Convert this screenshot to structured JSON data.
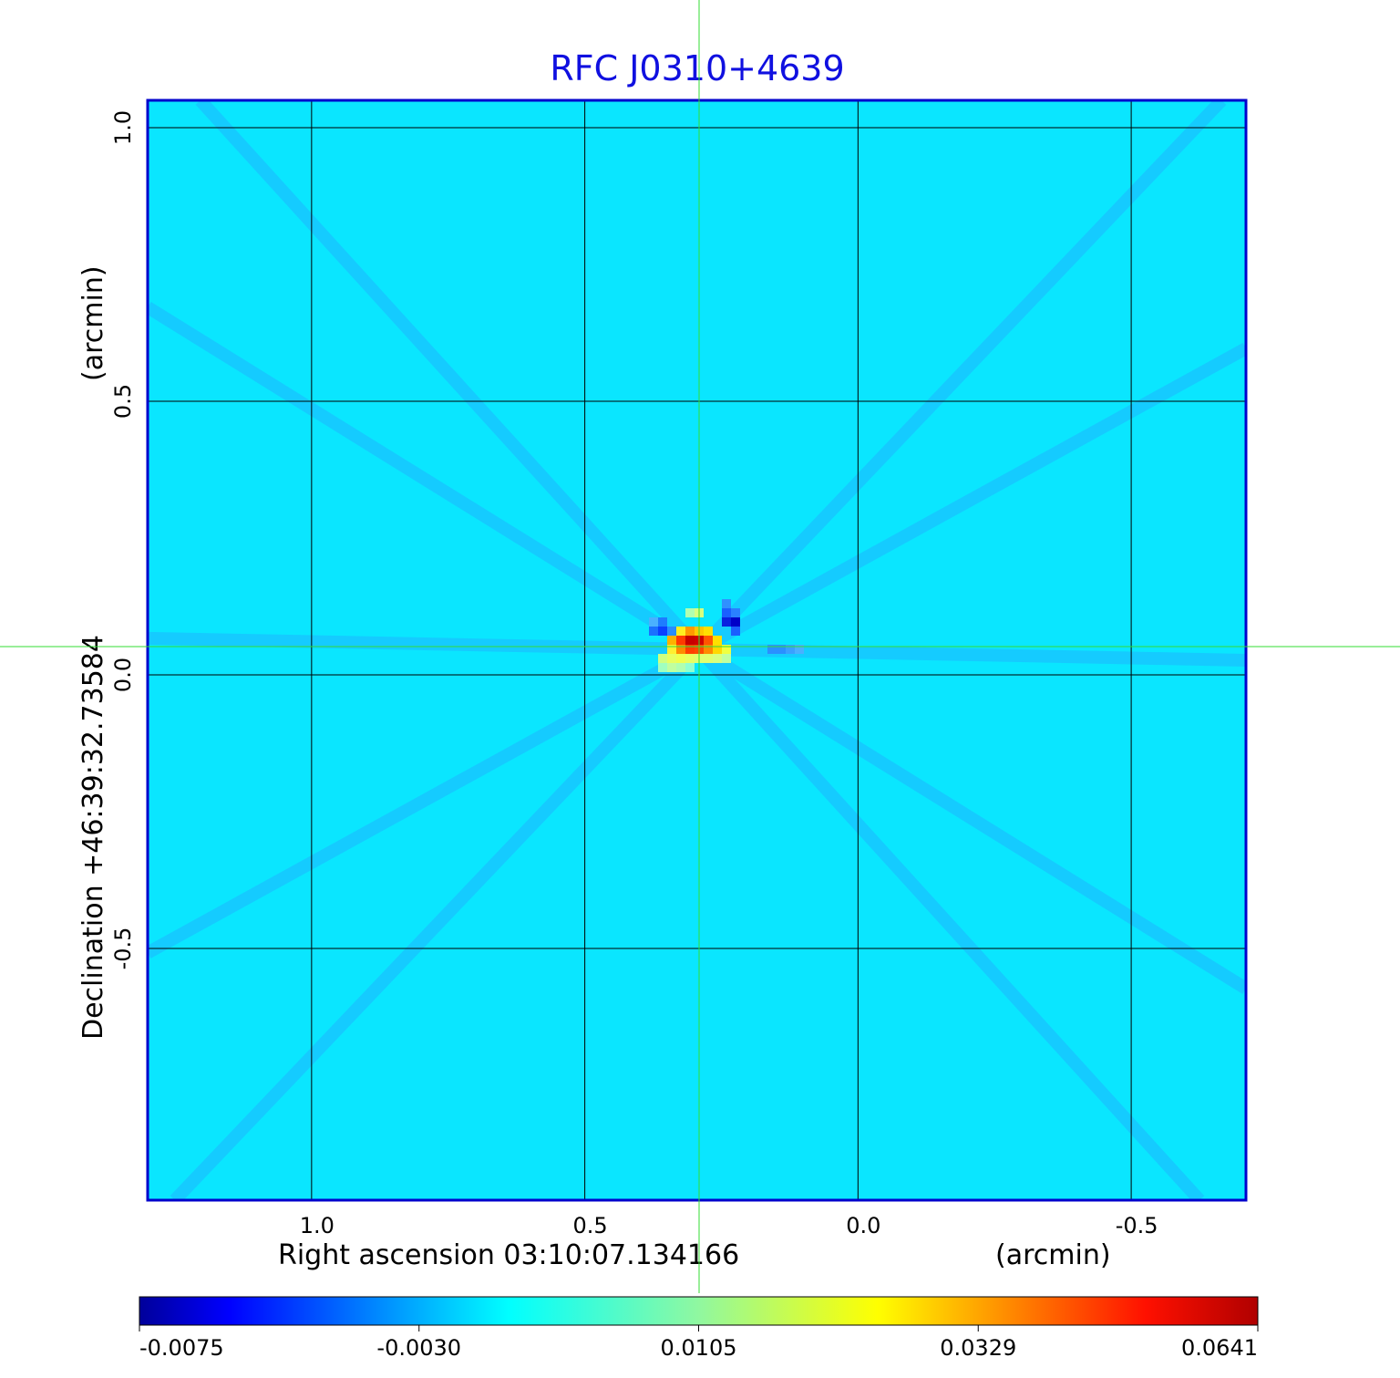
{
  "chart_data": {
    "type": "heatmap",
    "title": "RFC J0310+4639",
    "xlabel": "Right ascension  03:10:07.134166",
    "xlabel_unit": "(arcmin)",
    "ylabel": "Declination  +46:39:32.73584",
    "ylabel_unit": "(arcmin)",
    "x_ticks": [
      "1.0",
      "0.5",
      "0.0",
      "-0.5"
    ],
    "x_tick_values": [
      1.0,
      0.5,
      0.0,
      -0.5
    ],
    "y_ticks": [
      "1.0",
      "0.5",
      "0.0",
      "-0.5"
    ],
    "y_tick_values": [
      1.0,
      0.5,
      0.0,
      -0.5
    ],
    "xlim": [
      1.3,
      -0.71
    ],
    "ylim": [
      -0.96,
      1.05
    ],
    "grid": true,
    "crosshair": {
      "x": 0.29,
      "y": 0.048
    },
    "colorbar": {
      "colormap": "jet",
      "ticks": [
        "-0.0075",
        "-0.0030",
        "0.0105",
        "0.0329",
        "0.0641"
      ],
      "min": -0.0075,
      "max": 0.0641
    },
    "peak_value": 0.0641,
    "colors": {
      "title": "#1010e0",
      "frame": "#0000cc",
      "crosshair": "#33dd33",
      "background": "#00e8ff"
    }
  }
}
